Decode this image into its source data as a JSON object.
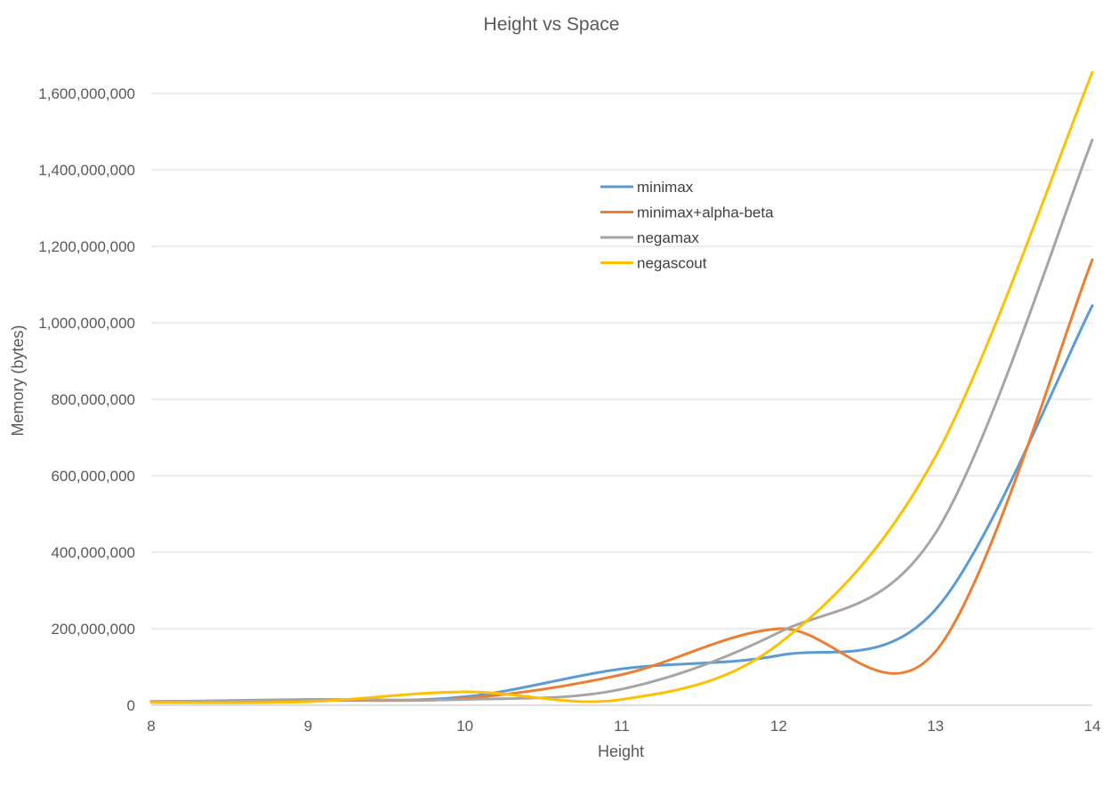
{
  "chart_data": {
    "type": "line",
    "title": "Height vs Space",
    "xlabel": "Height",
    "ylabel": "Memory (bytes)",
    "x": [
      8,
      9,
      10,
      11,
      12,
      13,
      14
    ],
    "xlim": [
      8,
      14
    ],
    "ylim": [
      0,
      1700000000
    ],
    "x_ticks": [
      "8",
      "9",
      "10",
      "11",
      "12",
      "13",
      "14"
    ],
    "y_ticks": [
      0,
      200000000,
      400000000,
      600000000,
      800000000,
      1000000000,
      1200000000,
      1400000000,
      1600000000
    ],
    "y_tick_labels": [
      "0",
      "200,000,000",
      "400,000,000",
      "600,000,000",
      "800,000,000",
      "1,000,000,000",
      "1,200,000,000",
      "1,400,000,000",
      "1,600,000,000"
    ],
    "grid": true,
    "smooth": true,
    "legend_position": "upper-center",
    "series": [
      {
        "name": "minimax",
        "color": "#5b9bd5",
        "values": [
          10000000,
          12000000,
          22000000,
          95000000,
          130000000,
          250000000,
          1045000000
        ]
      },
      {
        "name": "minimax+alpha-beta",
        "color": "#ed7d31",
        "values": [
          8000000,
          14000000,
          18000000,
          80000000,
          200000000,
          140000000,
          1165000000
        ]
      },
      {
        "name": "negamax",
        "color": "#a5a5a5",
        "values": [
          9000000,
          15000000,
          15000000,
          42000000,
          190000000,
          450000000,
          1478000000
        ]
      },
      {
        "name": "negascout",
        "color": "#ffc000",
        "values": [
          7000000,
          9000000,
          35000000,
          15000000,
          160000000,
          650000000,
          1655000000
        ]
      }
    ]
  }
}
